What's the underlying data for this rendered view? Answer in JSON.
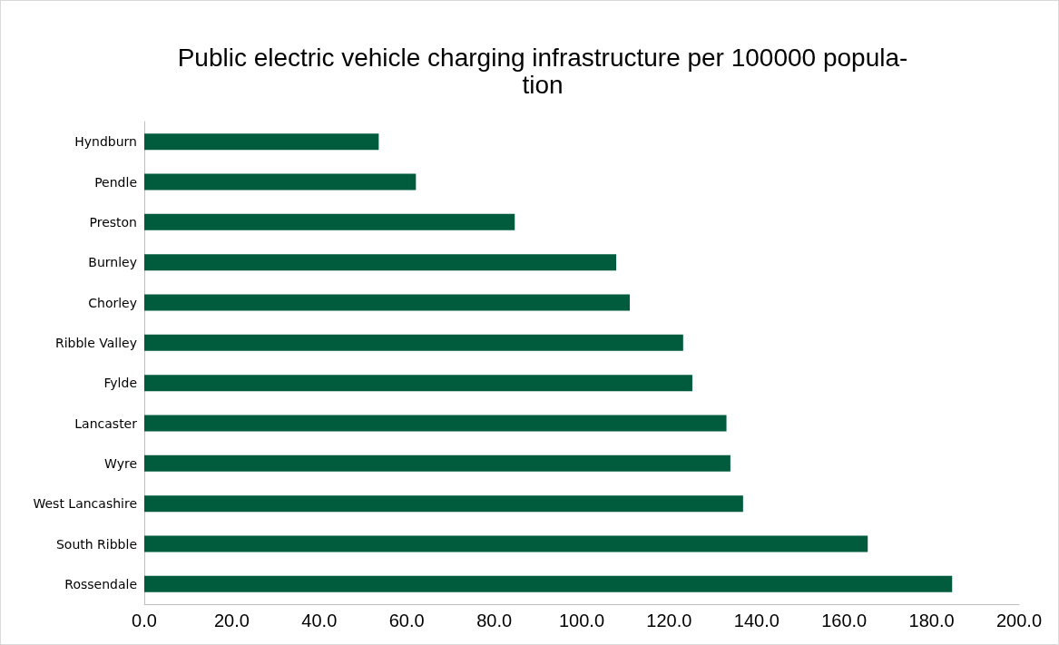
{
  "chart_data": {
    "type": "bar",
    "orientation": "horizontal",
    "title": "Public electric vehicle charging infrastructure per 100000 popula-\ntion",
    "categories": [
      "Hyndburn",
      "Pendle",
      "Preston",
      "Burnley",
      "Chorley",
      "Ribble Valley",
      "Fylde",
      "Lancaster",
      "Wyre",
      "West Lancashire",
      "South Ribble",
      "Rossendale"
    ],
    "values": [
      53.6,
      62.1,
      84.7,
      107.9,
      111.0,
      123.2,
      125.3,
      133.1,
      134.0,
      136.9,
      165.4,
      184.7
    ],
    "color": "#005c3c",
    "xlim": [
      0,
      200
    ],
    "xticks": [
      {
        "value": 0,
        "label": "0.0"
      },
      {
        "value": 20,
        "label": "20.0"
      },
      {
        "value": 40,
        "label": "40.0"
      },
      {
        "value": 60,
        "label": "60.0"
      },
      {
        "value": 80,
        "label": "80.0"
      },
      {
        "value": 100,
        "label": "100.0"
      },
      {
        "value": 120,
        "label": "120.0"
      },
      {
        "value": 140,
        "label": "140.0"
      },
      {
        "value": 160,
        "label": "160.0"
      },
      {
        "value": 180,
        "label": "180.0"
      },
      {
        "value": 200,
        "label": "200.0"
      }
    ],
    "grid": false
  }
}
